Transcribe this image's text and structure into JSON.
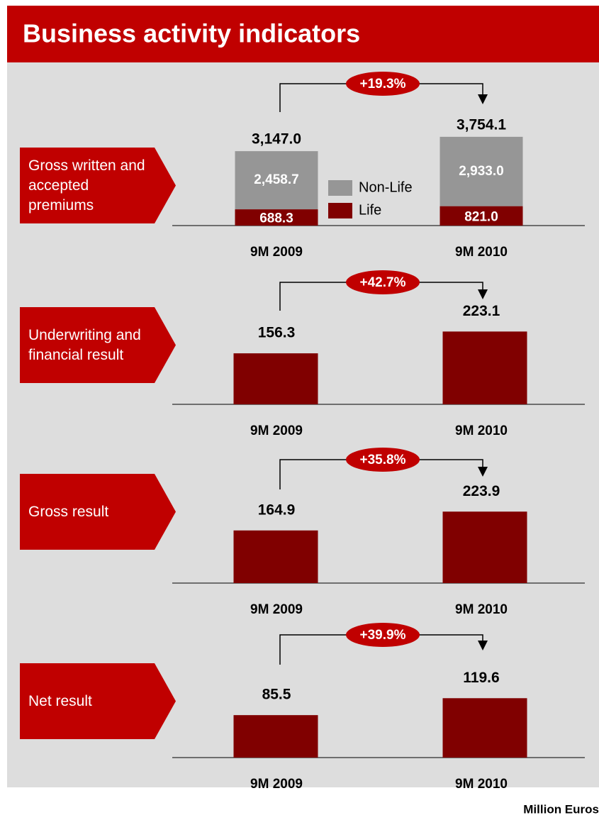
{
  "title": "Business activity indicators",
  "footer": "Million Euros",
  "chart_data": [
    {
      "type": "bar",
      "stacked": true,
      "label": "Gross written and accepted premiums",
      "annotation": "+19.3%",
      "categories": [
        "9M 2009",
        "9M 2010"
      ],
      "series": [
        {
          "name": "Life",
          "color": "#800000",
          "values": [
            688.3,
            821.0
          ],
          "value_labels": [
            "688.3",
            "821.0"
          ]
        },
        {
          "name": "Non-Life",
          "color": "#969696",
          "values": [
            2458.7,
            2933.0
          ],
          "value_labels": [
            "2,458.7",
            "2,933.0"
          ]
        }
      ],
      "totals": [
        3147.0,
        3754.1
      ],
      "total_labels": [
        "3,147.0",
        "3,754.1"
      ],
      "ylim": [
        0,
        4500
      ],
      "legend": "center"
    },
    {
      "type": "bar",
      "label": "Underwriting and financial result",
      "annotation": "+42.7%",
      "categories": [
        "9M 2009",
        "9M 2010"
      ],
      "values": [
        156.3,
        223.1
      ],
      "color": "#800000",
      "ylim": [
        0,
        300
      ]
    },
    {
      "type": "bar",
      "label": "Gross result",
      "annotation": "+35.8%",
      "categories": [
        "9M 2009",
        "9M 2010"
      ],
      "values": [
        164.9,
        223.9
      ],
      "color": "#800000",
      "ylim": [
        0,
        300
      ]
    },
    {
      "type": "bar",
      "label": "Net result",
      "annotation": "+39.9%",
      "categories": [
        "9M 2009",
        "9M 2010"
      ],
      "values": [
        85.5,
        119.6
      ],
      "color": "#800000",
      "ylim": [
        0,
        150
      ]
    }
  ]
}
